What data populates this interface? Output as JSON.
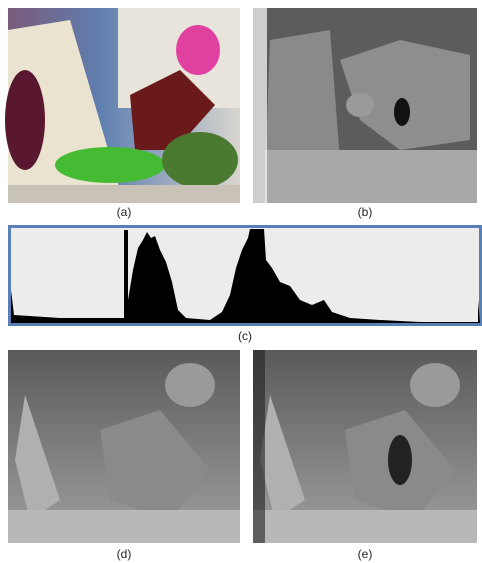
{
  "captions": [
    "(a)",
    "(b)",
    "(c)",
    "(d)",
    "(e)"
  ]
}
